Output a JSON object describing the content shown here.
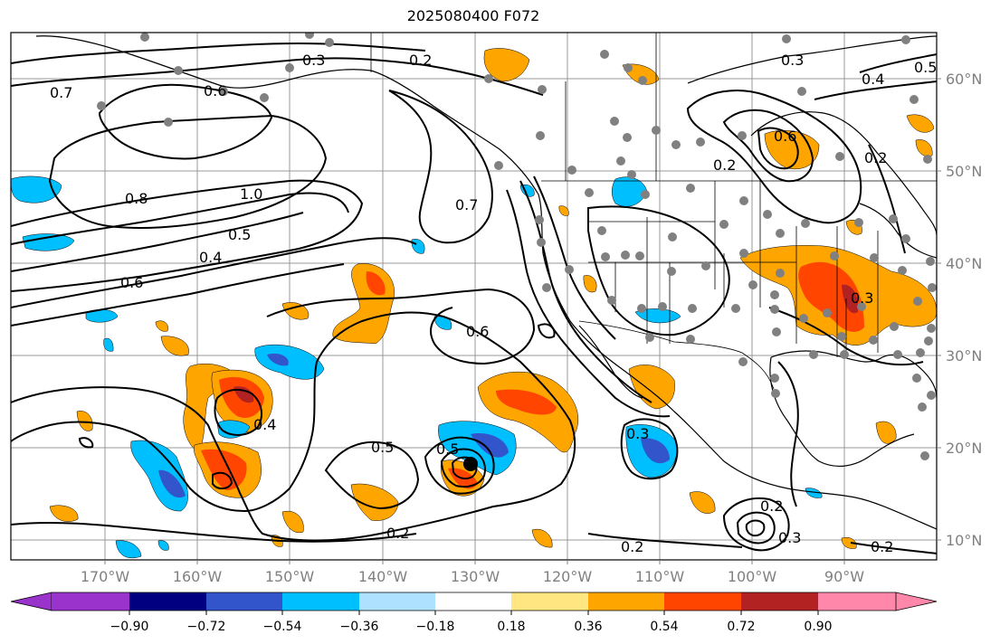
{
  "title": "2025080400 F072",
  "map": {
    "lon_labels": [
      "170°W",
      "160°W",
      "150°W",
      "140°W",
      "130°W",
      "120°W",
      "110°W",
      "100°W",
      "90°W"
    ],
    "lat_labels": [
      "60°N",
      "50°N",
      "40°N",
      "30°N",
      "20°N",
      "10°N"
    ],
    "contour_labels": [
      "0.7",
      "0.6",
      "0.3",
      "0.2",
      "1.0",
      "0.8",
      "0.6",
      "0.4",
      "0.5",
      "0.7",
      "0.6",
      "0.5",
      "0.5",
      "0.2",
      "0.4",
      "0.3",
      "0.2",
      "0.3",
      "0.2",
      "0.6",
      "0.3",
      "0.4",
      "0.5",
      "0.2",
      "0.2",
      "0.3",
      "0.2"
    ],
    "land_color": "#ffffff",
    "contour_color": "#000000",
    "station_marker_color": "#808080"
  },
  "colorbar": {
    "colors": [
      "#9933cc",
      "#000080",
      "#3355cc",
      "#00bfff",
      "#aee0ff",
      "#ffffff",
      "#ffe680",
      "#ffa500",
      "#ff4500",
      "#b22222",
      "#ff88aa"
    ],
    "tick_labels": [
      "−0.90",
      "−0.72",
      "−0.54",
      "−0.36",
      "−0.18",
      "0.18",
      "0.36",
      "0.54",
      "0.72",
      "0.90"
    ]
  }
}
